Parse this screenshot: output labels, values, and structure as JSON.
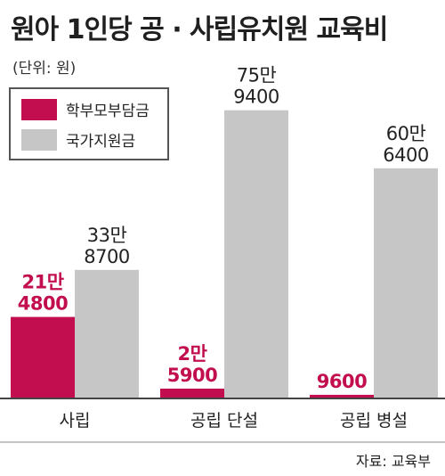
{
  "title": "원아 1인당 공 · 사립유치원 교육비",
  "unit": "(단위: 원)",
  "source": "자료: 교육부",
  "colors": {
    "parent": "#c20e4e",
    "gov": "#c6c6c6",
    "axis": "#444444",
    "text": "#222222"
  },
  "chart_data": {
    "type": "bar",
    "categories": [
      "사립",
      "공립 단설",
      "공립 병설"
    ],
    "series": [
      {
        "name": "학부모부담금",
        "values": [
          214800,
          25900,
          9600
        ],
        "labels": [
          [
            "21만",
            "4800"
          ],
          [
            "2만",
            "5900"
          ],
          [
            "9600"
          ]
        ]
      },
      {
        "name": "국가지원금",
        "values": [
          338700,
          759400,
          606400
        ],
        "labels": [
          [
            "33만",
            "8700"
          ],
          [
            "75만",
            "9400"
          ],
          [
            "60만",
            "6400"
          ]
        ]
      }
    ],
    "ylim": [
      0,
      1050000
    ],
    "grid": false,
    "legend": "top-left"
  }
}
